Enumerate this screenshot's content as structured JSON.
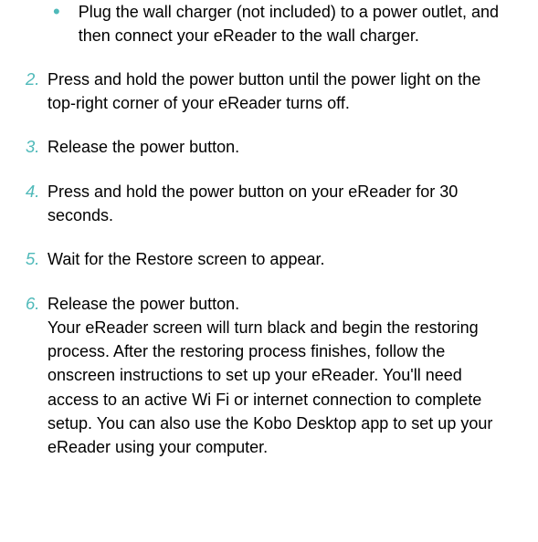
{
  "bullet": {
    "text": "Plug the wall charger (not included) to a power outlet, and then connect your eReader to the wall charger."
  },
  "steps": {
    "s2": {
      "num": "2.",
      "text": "Press and hold the power button until the power light on the top-right corner of your eReader turns off."
    },
    "s3": {
      "num": "3.",
      "text": "Release the power button."
    },
    "s4": {
      "num": "4.",
      "text": "Press and hold the power button on your eReader for 30 seconds."
    },
    "s5": {
      "num": "5.",
      "text": "Wait for the Restore screen to appear."
    },
    "s6": {
      "num": "6.",
      "text1": "Release the power button.",
      "text2": "Your eReader screen will turn black and begin the restoring process. After the restoring process finishes, follow the onscreen instructions to set up your eReader. You'll need access to an active Wi Fi or internet connection to complete setup. You can also use the Kobo Desktop app to set up your eReader using your computer."
    }
  },
  "colors": {
    "accent": "#4fb9b9",
    "text": "#000000",
    "background": "#ffffff"
  }
}
